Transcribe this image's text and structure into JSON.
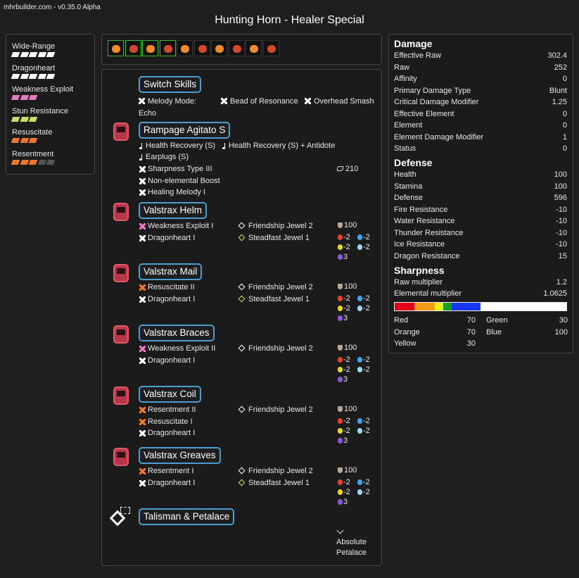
{
  "header": {
    "version": "mhrbuilder.com - v0.35.0 Alpha",
    "title": "Hunting Horn - Healer Special"
  },
  "skills": [
    {
      "name": "Wide-Range",
      "level": 5,
      "max": 5,
      "color": "#ffffff"
    },
    {
      "name": "Dragonheart",
      "level": 5,
      "max": 5,
      "color": "#ffffff"
    },
    {
      "name": "Weakness Exploit",
      "level": 3,
      "max": 3,
      "color": "#e77bc0"
    },
    {
      "name": "Stun Resistance",
      "level": 3,
      "max": 3,
      "color": "#c8dd6a"
    },
    {
      "name": "Resuscitate",
      "level": 3,
      "max": 3,
      "color": "#f0782a"
    },
    {
      "name": "Resentment",
      "level": 3,
      "max": 5,
      "color": "#f0782a"
    }
  ],
  "switch_skills": {
    "title": "Switch Skills",
    "skills": [
      "Melody Mode: Echo",
      "Bead of Resonance",
      "Overhead Smash"
    ]
  },
  "weapon": {
    "name": "Rampage Agitato S",
    "songs": [
      "Health Recovery (S)",
      "Health Recovery (S) + Antidote",
      "Earplugs (S)"
    ],
    "skills": [
      "Sharpness Type III",
      "Non-elemental Boost",
      "Healing Melody I"
    ],
    "stat": 210
  },
  "armor": [
    {
      "name": "Valstrax Helm",
      "skills": [
        {
          "name": "Weakness Exploit I",
          "color": "#e77bc0"
        },
        {
          "name": "Dragonheart I",
          "color": "#ffffff"
        }
      ],
      "jewels": [
        {
          "name": "Friendship Jewel 2",
          "color": "#ffffff"
        },
        {
          "name": "Steadfast Jewel 1",
          "color": "#c8dd6a"
        }
      ],
      "defense": 100,
      "fire": -2,
      "water": -2,
      "thunder": -2,
      "ice": -2,
      "dragon": 3
    },
    {
      "name": "Valstrax Mail",
      "skills": [
        {
          "name": "Resuscitate II",
          "color": "#f0782a"
        },
        {
          "name": "Dragonheart I",
          "color": "#ffffff"
        }
      ],
      "jewels": [
        {
          "name": "Friendship Jewel 2",
          "color": "#ffffff"
        },
        {
          "name": "Steadfast Jewel 1",
          "color": "#c8dd6a"
        }
      ],
      "defense": 100,
      "fire": -2,
      "water": -2,
      "thunder": -2,
      "ice": -2,
      "dragon": 3
    },
    {
      "name": "Valstrax Braces",
      "skills": [
        {
          "name": "Weakness Exploit II",
          "color": "#e77bc0"
        },
        {
          "name": "Dragonheart I",
          "color": "#ffffff"
        }
      ],
      "jewels": [
        {
          "name": "Friendship Jewel 2",
          "color": "#ffffff"
        }
      ],
      "defense": 100,
      "fire": -2,
      "water": -2,
      "thunder": -2,
      "ice": -2,
      "dragon": 3
    },
    {
      "name": "Valstrax Coil",
      "skills": [
        {
          "name": "Resentment II",
          "color": "#f0782a"
        },
        {
          "name": "Resuscitate I",
          "color": "#f0782a"
        },
        {
          "name": "Dragonheart I",
          "color": "#ffffff"
        }
      ],
      "jewels": [
        {
          "name": "Friendship Jewel 2",
          "color": "#ffffff"
        }
      ],
      "defense": 100,
      "fire": -2,
      "water": -2,
      "thunder": -2,
      "ice": -2,
      "dragon": 3
    },
    {
      "name": "Valstrax Greaves",
      "skills": [
        {
          "name": "Resentment I",
          "color": "#f0782a"
        },
        {
          "name": "Dragonheart I",
          "color": "#ffffff"
        }
      ],
      "jewels": [
        {
          "name": "Friendship Jewel 2",
          "color": "#ffffff"
        },
        {
          "name": "Steadfast Jewel 1",
          "color": "#c8dd6a"
        }
      ],
      "defense": 100,
      "fire": -2,
      "water": -2,
      "thunder": -2,
      "ice": -2,
      "dragon": 3
    }
  ],
  "talisman": {
    "name": "Talisman & Petalace",
    "petalace": "Absolute Petalace"
  },
  "stats": [
    {
      "title": "Damage",
      "rows": [
        {
          "label": "Effective Raw",
          "value": 302.4
        },
        {
          "label": "Raw",
          "value": 252
        },
        {
          "label": "Affinity",
          "value": 0
        },
        {
          "label": "Primary Damage Type",
          "value": "Blunt"
        },
        {
          "label": "Critical Damage Modifier",
          "value": 1.25
        },
        {
          "label": "Effective Element",
          "value": 0
        },
        {
          "label": "Element",
          "value": 0
        },
        {
          "label": "Element Damage Modifier",
          "value": 1
        },
        {
          "label": "Status",
          "value": 0
        }
      ]
    },
    {
      "title": "Defense",
      "rows": [
        {
          "label": "Health",
          "value": 100
        },
        {
          "label": "Stamina",
          "value": 100
        },
        {
          "label": "Defense",
          "value": 596
        },
        {
          "label": "Fire Resistance",
          "value": -10
        },
        {
          "label": "Water Resistance",
          "value": -10
        },
        {
          "label": "Thunder Resistance",
          "value": -10
        },
        {
          "label": "Ice Resistance",
          "value": -10
        },
        {
          "label": "Dragon Resistance",
          "value": 15
        }
      ]
    },
    {
      "title": "Sharpness",
      "rows": [
        {
          "label": "Raw multiplier",
          "value": 1.2
        },
        {
          "label": "Elemental multiplier",
          "value": 1.0625
        }
      ]
    }
  ],
  "sharpness": [
    {
      "name": "Red",
      "value": 70,
      "color": "#e4001b"
    },
    {
      "name": "Orange",
      "value": 70,
      "color": "#f59a16"
    },
    {
      "name": "Yellow",
      "value": 30,
      "color": "#f2ec12"
    },
    {
      "name": "Green",
      "value": 30,
      "color": "#17a120"
    },
    {
      "name": "Blue",
      "value": 100,
      "color": "#1836f4"
    }
  ]
}
